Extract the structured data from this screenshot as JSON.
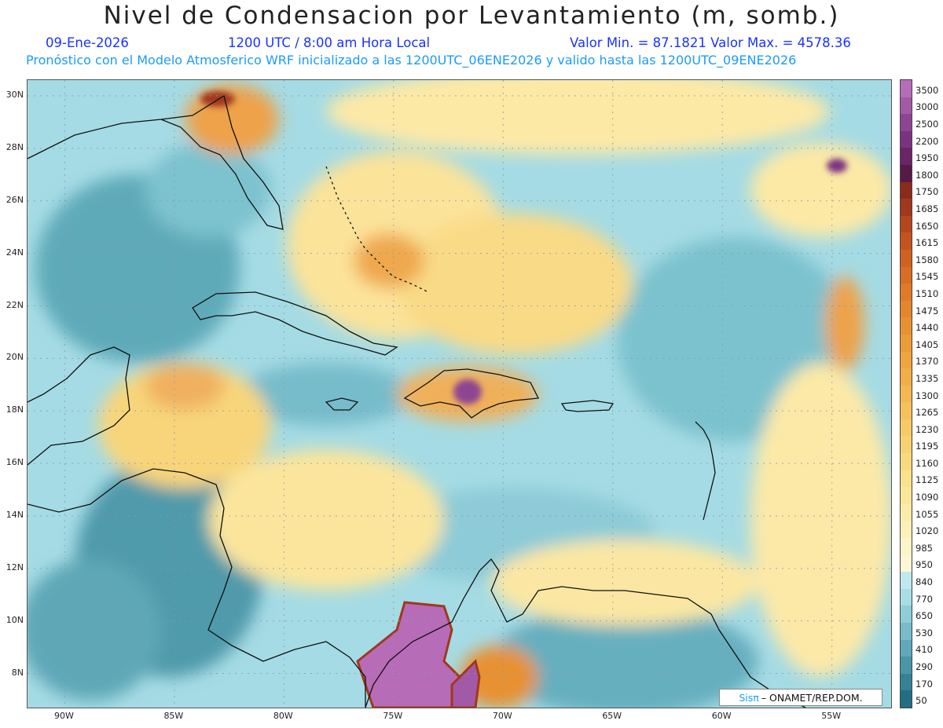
{
  "title": "Nivel de Condensacion por Levantamiento (m, somb.)",
  "header": {
    "date": "09-Ene-2026",
    "time": "1200 UTC / 8:00 am Hora Local",
    "minmax": "Valor Min. = 87.1821  Valor Max. = 4578.36",
    "subtitle": "Pronóstico con el Modelo Atmosferico WRF inicializado a las 1200UTC_06ENE2026 y valido hasta las  1200UTC_09ENE2026"
  },
  "map": {
    "lat_labels": [
      "30N",
      "28N",
      "26N",
      "24N",
      "22N",
      "20N",
      "18N",
      "16N",
      "14N",
      "12N",
      "10N",
      "8N"
    ],
    "lon_labels": [
      "90W",
      "85W",
      "80W",
      "75W",
      "70W",
      "65W",
      "60W",
      "55W"
    ],
    "lat_values": [
      30,
      28,
      26,
      24,
      22,
      20,
      18,
      16,
      14,
      12,
      10,
      8
    ],
    "lon_values": [
      -90,
      -85,
      -80,
      -75,
      -70,
      -65,
      -60,
      -55
    ],
    "extent": {
      "lon_min": -91.7,
      "lon_max": -52.3,
      "lat_min": 6.7,
      "lat_max": 30.6
    }
  },
  "colorbar": {
    "labels": [
      "3500",
      "3000",
      "2500",
      "2200",
      "1950",
      "1800",
      "1750",
      "1685",
      "1650",
      "1615",
      "1580",
      "1545",
      "1510",
      "1475",
      "1440",
      "1405",
      "1370",
      "1335",
      "1300",
      "1265",
      "1230",
      "1195",
      "1160",
      "1125",
      "1090",
      "1055",
      "1020",
      "985",
      "950",
      "840",
      "770",
      "650",
      "530",
      "410",
      "290",
      "170",
      "50"
    ],
    "colors": [
      "#b76cb8",
      "#a35aa6",
      "#8d4493",
      "#7a3380",
      "#6a2566",
      "#571a47",
      "#8a2c1c",
      "#a0381c",
      "#b4461c",
      "#c4541f",
      "#cf6121",
      "#d86d25",
      "#df7a29",
      "#e3862e",
      "#e89133",
      "#ec9b39",
      "#efa540",
      "#f2ae48",
      "#f4b752",
      "#f6c05c",
      "#f7c967",
      "#f8d172",
      "#f9d97f",
      "#fae18c",
      "#fbe79a",
      "#fcecaa",
      "#fdf0b9",
      "#fef4c9",
      "#fdf7d6",
      "#bfe8ef",
      "#a9dde6",
      "#8fcdd9",
      "#77bccb",
      "#60a9bb",
      "#4a95a8",
      "#368196",
      "#236e84"
    ]
  },
  "credit": {
    "sis": "Sisπ",
    "org": "– ONAMET/REP.DOM."
  }
}
